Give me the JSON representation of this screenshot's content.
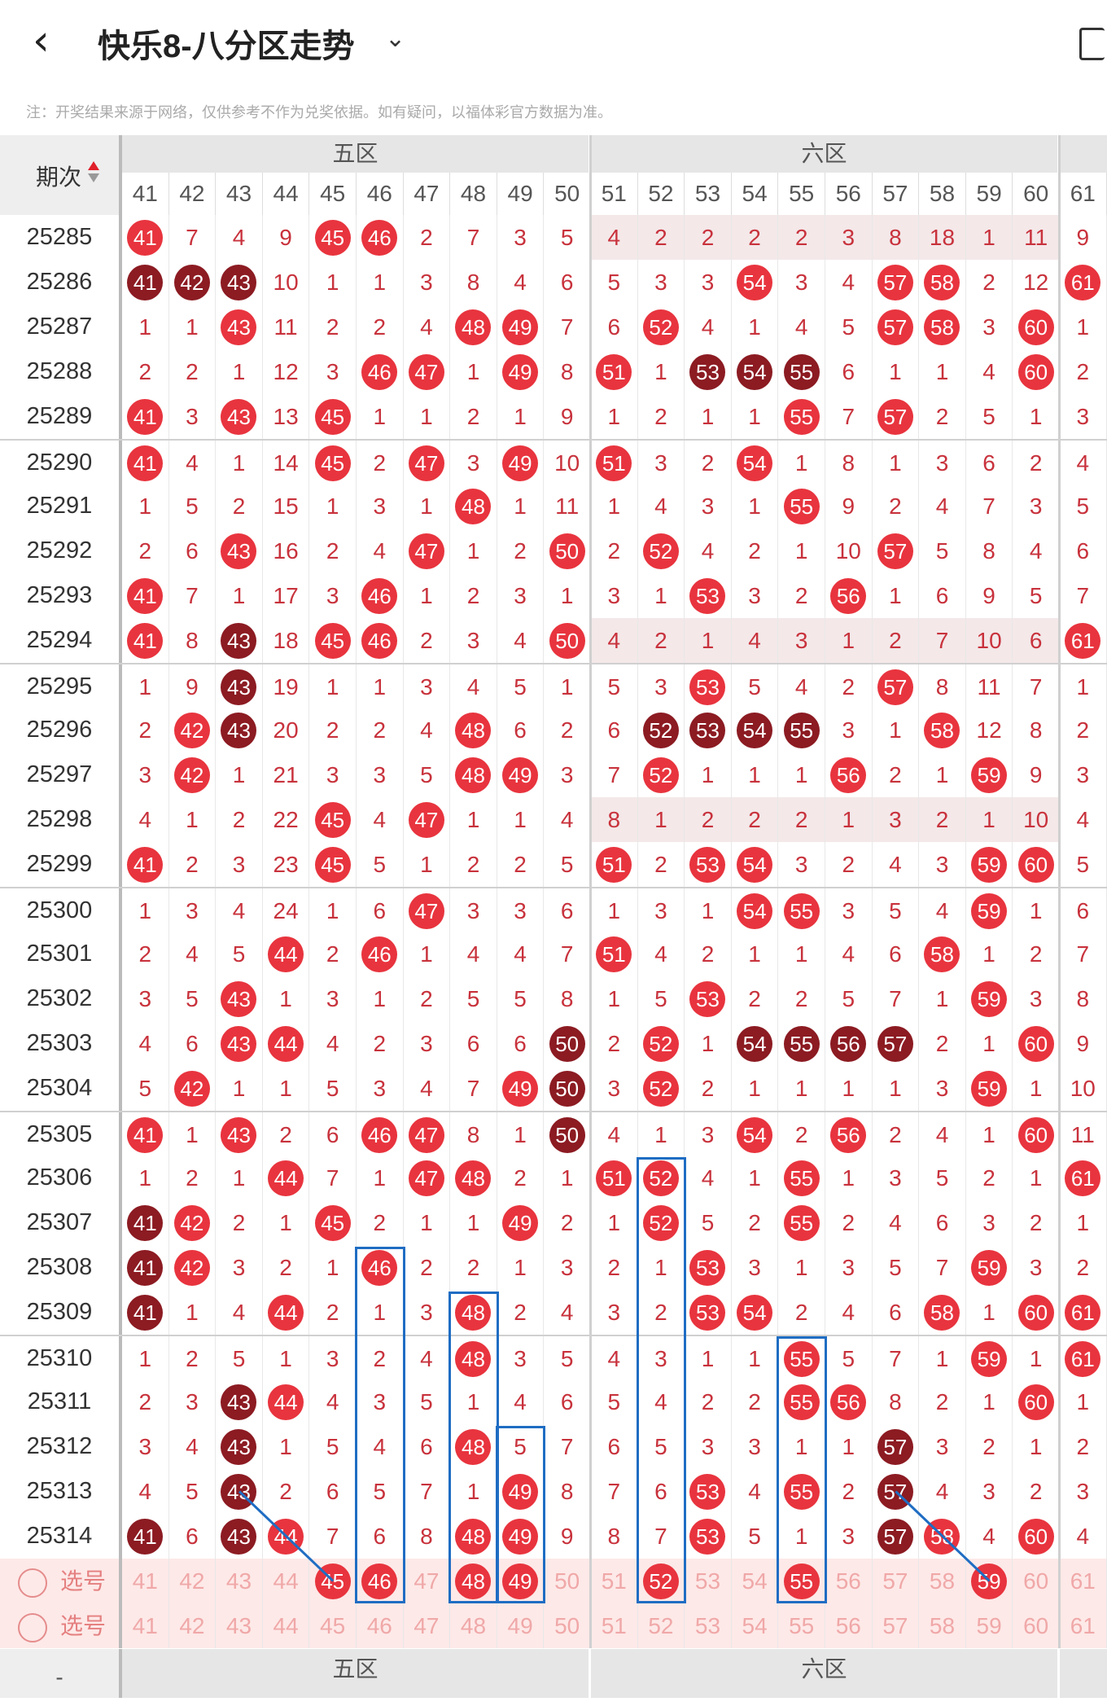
{
  "header": {
    "back": "‹",
    "title": "快乐8-八分区走势",
    "dropdown": "⌄"
  },
  "note": "注：开奖结果来源于网络，仅供参考不作为兑奖依据。如有疑问，以福体彩官方数据为准。",
  "corner": "期次",
  "zones": [
    "五区",
    "六区"
  ],
  "numbers": [
    "41",
    "42",
    "43",
    "44",
    "45",
    "46",
    "47",
    "48",
    "49",
    "50",
    "51",
    "52",
    "53",
    "54",
    "55",
    "56",
    "57",
    "58",
    "59",
    "60",
    "61"
  ],
  "rows": [
    {
      "id": "25285",
      "v": [
        "41b",
        "7",
        "4",
        "9",
        "45b",
        "46b",
        "2",
        "7",
        "3",
        "5",
        "4",
        "2",
        "2",
        "2",
        "2",
        "3",
        "8",
        "18",
        "1",
        "11",
        "9"
      ],
      "hl": 1
    },
    {
      "id": "25286",
      "v": [
        "41d",
        "42d",
        "43d",
        "10",
        "1",
        "1",
        "3",
        "8",
        "4",
        "6",
        "5",
        "3",
        "3",
        "54b",
        "3",
        "4",
        "57b",
        "58b",
        "2",
        "12",
        "61b"
      ]
    },
    {
      "id": "25287",
      "v": [
        "1",
        "1",
        "43b",
        "11",
        "2",
        "2",
        "4",
        "48b",
        "49b",
        "7",
        "6",
        "52b",
        "4",
        "1",
        "4",
        "5",
        "57b",
        "58b",
        "3",
        "60b",
        "1"
      ]
    },
    {
      "id": "25288",
      "v": [
        "2",
        "2",
        "1",
        "12",
        "3",
        "46b",
        "47b",
        "1",
        "49b",
        "8",
        "51b",
        "1",
        "53d",
        "54d",
        "55d",
        "6",
        "1",
        "1",
        "4",
        "60b",
        "2"
      ]
    },
    {
      "id": "25289",
      "v": [
        "41b",
        "3",
        "43b",
        "13",
        "45b",
        "1",
        "1",
        "2",
        "1",
        "9",
        "1",
        "2",
        "1",
        "1",
        "55b",
        "7",
        "57b",
        "2",
        "5",
        "1",
        "3"
      ]
    },
    {
      "id": "25290",
      "v": [
        "41b",
        "4",
        "1",
        "14",
        "45b",
        "2",
        "47b",
        "3",
        "49b",
        "10",
        "51b",
        "3",
        "2",
        "54b",
        "1",
        "8",
        "1",
        "3",
        "6",
        "2",
        "4"
      ],
      "sep": 1
    },
    {
      "id": "25291",
      "v": [
        "1",
        "5",
        "2",
        "15",
        "1",
        "3",
        "1",
        "48b",
        "1",
        "11",
        "1",
        "4",
        "3",
        "1",
        "55b",
        "9",
        "2",
        "4",
        "7",
        "3",
        "5"
      ]
    },
    {
      "id": "25292",
      "v": [
        "2",
        "6",
        "43b",
        "16",
        "2",
        "4",
        "47b",
        "1",
        "2",
        "50b",
        "2",
        "52b",
        "4",
        "2",
        "1",
        "10",
        "57b",
        "5",
        "8",
        "4",
        "6"
      ]
    },
    {
      "id": "25293",
      "v": [
        "41b",
        "7",
        "1",
        "17",
        "3",
        "46b",
        "1",
        "2",
        "3",
        "1",
        "3",
        "1",
        "53b",
        "3",
        "2",
        "56b",
        "1",
        "6",
        "9",
        "5",
        "7"
      ]
    },
    {
      "id": "25294",
      "v": [
        "41b",
        "8",
        "43d",
        "18",
        "45b",
        "46b",
        "2",
        "3",
        "4",
        "50b",
        "4",
        "2",
        "1",
        "4",
        "3",
        "1",
        "2",
        "7",
        "10",
        "6",
        "61b"
      ],
      "hl": 1
    },
    {
      "id": "25295",
      "v": [
        "1",
        "9",
        "43d",
        "19",
        "1",
        "1",
        "3",
        "4",
        "5",
        "1",
        "5",
        "3",
        "53b",
        "5",
        "4",
        "2",
        "57b",
        "8",
        "11",
        "7",
        "1"
      ],
      "sep": 1
    },
    {
      "id": "25296",
      "v": [
        "2",
        "42b",
        "43d",
        "20",
        "2",
        "2",
        "4",
        "48b",
        "6",
        "2",
        "6",
        "52d",
        "53d",
        "54d",
        "55d",
        "3",
        "1",
        "58b",
        "12",
        "8",
        "2"
      ]
    },
    {
      "id": "25297",
      "v": [
        "3",
        "42b",
        "1",
        "21",
        "3",
        "3",
        "5",
        "48b",
        "49b",
        "3",
        "7",
        "52b",
        "1",
        "1",
        "1",
        "56b",
        "2",
        "1",
        "59b",
        "9",
        "3"
      ]
    },
    {
      "id": "25298",
      "v": [
        "4",
        "1",
        "2",
        "22",
        "45b",
        "4",
        "47b",
        "1",
        "1",
        "4",
        "8",
        "1",
        "2",
        "2",
        "2",
        "1",
        "3",
        "2",
        "1",
        "10",
        "4"
      ],
      "hl": 1
    },
    {
      "id": "25299",
      "v": [
        "41b",
        "2",
        "3",
        "23",
        "45b",
        "5",
        "1",
        "2",
        "2",
        "5",
        "51b",
        "2",
        "53b",
        "54b",
        "3",
        "2",
        "4",
        "3",
        "59b",
        "60b",
        "5"
      ]
    },
    {
      "id": "25300",
      "v": [
        "1",
        "3",
        "4",
        "24",
        "1",
        "6",
        "47b",
        "3",
        "3",
        "6",
        "1",
        "3",
        "1",
        "54b",
        "55b",
        "3",
        "5",
        "4",
        "59b",
        "1",
        "6"
      ],
      "sep": 1
    },
    {
      "id": "25301",
      "v": [
        "2",
        "4",
        "5",
        "44b",
        "2",
        "46b",
        "1",
        "4",
        "4",
        "7",
        "51b",
        "4",
        "2",
        "1",
        "1",
        "4",
        "6",
        "58b",
        "1",
        "2",
        "7"
      ]
    },
    {
      "id": "25302",
      "v": [
        "3",
        "5",
        "43b",
        "1",
        "3",
        "1",
        "2",
        "5",
        "5",
        "8",
        "1",
        "5",
        "53b",
        "2",
        "2",
        "5",
        "7",
        "1",
        "59b",
        "3",
        "8"
      ]
    },
    {
      "id": "25303",
      "v": [
        "4",
        "6",
        "43b",
        "44b",
        "4",
        "2",
        "3",
        "6",
        "6",
        "50d",
        "2",
        "52b",
        "1",
        "54d",
        "55d",
        "56d",
        "57d",
        "2",
        "1",
        "60b",
        "9"
      ]
    },
    {
      "id": "25304",
      "v": [
        "5",
        "42b",
        "1",
        "1",
        "5",
        "3",
        "4",
        "7",
        "49b",
        "50d",
        "3",
        "52b",
        "2",
        "1",
        "1",
        "1",
        "1",
        "3",
        "59b",
        "1",
        "10"
      ]
    },
    {
      "id": "25305",
      "v": [
        "41b",
        "1",
        "43b",
        "2",
        "6",
        "46b",
        "47b",
        "8",
        "1",
        "50d",
        "4",
        "1",
        "3",
        "54b",
        "2",
        "56b",
        "2",
        "4",
        "1",
        "60b",
        "11"
      ],
      "sep": 1
    },
    {
      "id": "25306",
      "v": [
        "1",
        "2",
        "1",
        "44b",
        "7",
        "1",
        "47b",
        "48b",
        "2",
        "1",
        "51b",
        "52b",
        "4",
        "1",
        "55b",
        "1",
        "3",
        "5",
        "2",
        "1",
        "61b"
      ]
    },
    {
      "id": "25307",
      "v": [
        "41d",
        "42b",
        "2",
        "1",
        "45b",
        "2",
        "1",
        "1",
        "49b",
        "2",
        "1",
        "52b",
        "5",
        "2",
        "55b",
        "2",
        "4",
        "6",
        "3",
        "2",
        "1"
      ]
    },
    {
      "id": "25308",
      "v": [
        "41d",
        "42b",
        "3",
        "2",
        "1",
        "46b",
        "2",
        "2",
        "1",
        "3",
        "2",
        "1",
        "53b",
        "3",
        "1",
        "3",
        "5",
        "7",
        "59b",
        "3",
        "2"
      ]
    },
    {
      "id": "25309",
      "v": [
        "41d",
        "1",
        "4",
        "44b",
        "2",
        "1",
        "3",
        "48b",
        "2",
        "4",
        "3",
        "2",
        "53b",
        "54b",
        "2",
        "4",
        "6",
        "58b",
        "1",
        "60b",
        "61b"
      ]
    },
    {
      "id": "25310",
      "v": [
        "1",
        "2",
        "5",
        "1",
        "3",
        "2",
        "4",
        "48b",
        "3",
        "5",
        "4",
        "3",
        "1",
        "1",
        "55b",
        "5",
        "7",
        "1",
        "59b",
        "1",
        "61b"
      ],
      "sep": 1
    },
    {
      "id": "25311",
      "v": [
        "2",
        "3",
        "43d",
        "44b",
        "4",
        "3",
        "5",
        "1",
        "4",
        "6",
        "5",
        "4",
        "2",
        "2",
        "55b",
        "56b",
        "8",
        "2",
        "1",
        "60b",
        "1"
      ]
    },
    {
      "id": "25312",
      "v": [
        "3",
        "4",
        "43d",
        "1",
        "5",
        "4",
        "6",
        "48b",
        "5",
        "7",
        "6",
        "5",
        "3",
        "3",
        "1",
        "1",
        "57d",
        "3",
        "2",
        "1",
        "2"
      ]
    },
    {
      "id": "25313",
      "v": [
        "4",
        "5",
        "43d",
        "2",
        "6",
        "5",
        "7",
        "1",
        "49b",
        "8",
        "7",
        "6",
        "53b",
        "4",
        "55b",
        "2",
        "57d",
        "4",
        "3",
        "2",
        "3"
      ]
    },
    {
      "id": "25314",
      "v": [
        "41d",
        "6",
        "43d",
        "44b",
        "7",
        "6",
        "8",
        "48b",
        "49b",
        "9",
        "8",
        "7",
        "53b",
        "5",
        "1",
        "3",
        "57d",
        "58b",
        "4",
        "60b",
        "4"
      ]
    }
  ],
  "select_rows": [
    {
      "label": "选号",
      "v": [
        "41",
        "42",
        "43",
        "44",
        "45b",
        "46b",
        "47",
        "48b",
        "49b",
        "50",
        "51",
        "52b",
        "53",
        "54",
        "55b",
        "56",
        "57",
        "58",
        "59b",
        "60",
        "61"
      ]
    },
    {
      "label": "选号",
      "v": [
        "41",
        "42",
        "43",
        "44",
        "45",
        "46",
        "47",
        "48",
        "49",
        "50",
        "51",
        "52",
        "53",
        "54",
        "55",
        "56",
        "57",
        "58",
        "59",
        "60",
        "61"
      ]
    }
  ],
  "footer": {
    "left": "-",
    "zones": [
      "五区",
      "六区"
    ]
  }
}
